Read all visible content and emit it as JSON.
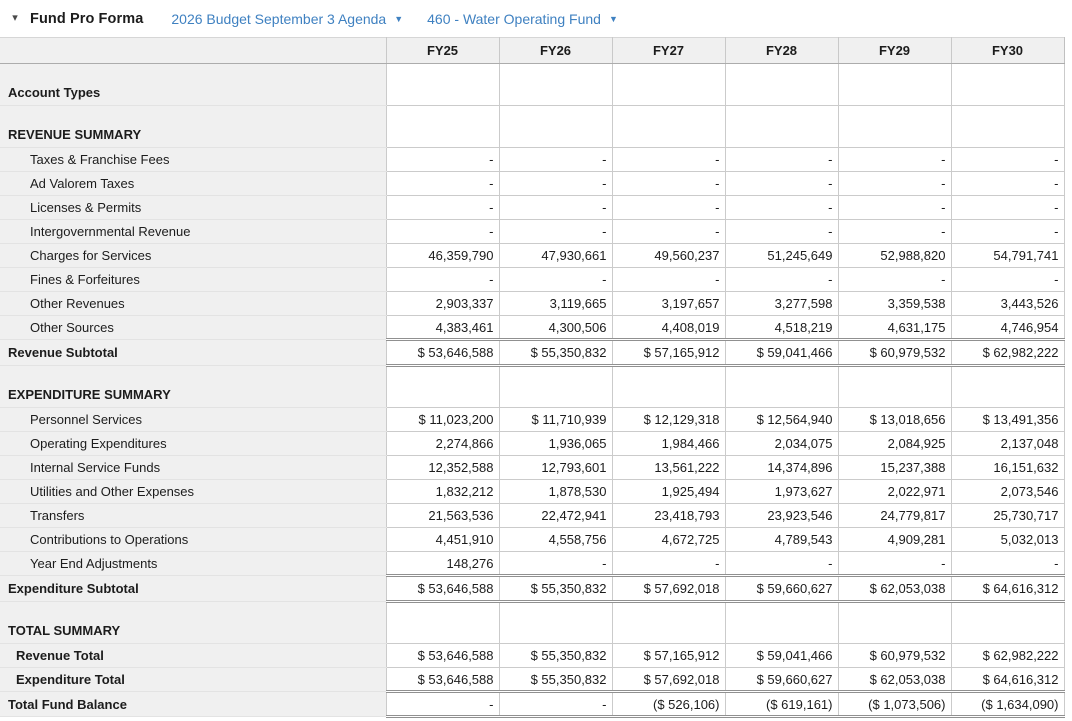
{
  "header": {
    "collapse_icon": "▾",
    "title": "Fund Pro Forma",
    "budget_dropdown": {
      "label": "2026 Budget September 3 Agenda",
      "caret": "▼"
    },
    "fund_dropdown": {
      "label": "460 - Water Operating Fund",
      "caret": "▼"
    }
  },
  "colors": {
    "link_blue": "#3f81c1",
    "header_bg": "#f0f0f0",
    "label_column_bg": "#f0f0f0",
    "cell_border": "#cbcbcb",
    "double_rule": "#909090",
    "text": "#1c1c1c"
  },
  "table": {
    "columns": [
      "FY25",
      "FY26",
      "FY27",
      "FY28",
      "FY29",
      "FY30"
    ],
    "rows": [
      {
        "type": "section",
        "label": "Account Types",
        "values": [
          "",
          "",
          "",
          "",
          "",
          ""
        ]
      },
      {
        "type": "section",
        "label": "REVENUE SUMMARY",
        "values": [
          "",
          "",
          "",
          "",
          "",
          ""
        ]
      },
      {
        "type": "detail",
        "label": "Taxes & Franchise Fees",
        "values": [
          "-",
          "-",
          "-",
          "-",
          "-",
          "-"
        ]
      },
      {
        "type": "detail",
        "label": "Ad Valorem Taxes",
        "values": [
          "-",
          "-",
          "-",
          "-",
          "-",
          "-"
        ]
      },
      {
        "type": "detail",
        "label": "Licenses & Permits",
        "values": [
          "-",
          "-",
          "-",
          "-",
          "-",
          "-"
        ]
      },
      {
        "type": "detail",
        "label": "Intergovernmental Revenue",
        "values": [
          "-",
          "-",
          "-",
          "-",
          "-",
          "-"
        ]
      },
      {
        "type": "detail",
        "label": "Charges for Services",
        "values": [
          "46,359,790",
          "47,930,661",
          "49,560,237",
          "51,245,649",
          "52,988,820",
          "54,791,741"
        ]
      },
      {
        "type": "detail",
        "label": "Fines & Forfeitures",
        "values": [
          "-",
          "-",
          "-",
          "-",
          "-",
          "-"
        ]
      },
      {
        "type": "detail",
        "label": "Other Revenues",
        "values": [
          "2,903,337",
          "3,119,665",
          "3,197,657",
          "3,277,598",
          "3,359,538",
          "3,443,526"
        ]
      },
      {
        "type": "detail",
        "label": "Other Sources",
        "values": [
          "4,383,461",
          "4,300,506",
          "4,408,019",
          "4,518,219",
          "4,631,175",
          "4,746,954"
        ]
      },
      {
        "type": "subtotal",
        "label": "Revenue Subtotal",
        "values": [
          "$ 53,646,588",
          "$ 55,350,832",
          "$ 57,165,912",
          "$ 59,041,466",
          "$ 60,979,532",
          "$ 62,982,222"
        ]
      },
      {
        "type": "section",
        "label": "EXPENDITURE SUMMARY",
        "values": [
          "",
          "",
          "",
          "",
          "",
          ""
        ]
      },
      {
        "type": "detail",
        "label": "Personnel Services",
        "values": [
          "$ 11,023,200",
          "$ 11,710,939",
          "$ 12,129,318",
          "$ 12,564,940",
          "$ 13,018,656",
          "$ 13,491,356"
        ]
      },
      {
        "type": "detail",
        "label": "Operating Expenditures",
        "values": [
          "2,274,866",
          "1,936,065",
          "1,984,466",
          "2,034,075",
          "2,084,925",
          "2,137,048"
        ]
      },
      {
        "type": "detail",
        "label": "Internal Service Funds",
        "values": [
          "12,352,588",
          "12,793,601",
          "13,561,222",
          "14,374,896",
          "15,237,388",
          "16,151,632"
        ]
      },
      {
        "type": "detail",
        "label": "Utilities and Other Expenses",
        "values": [
          "1,832,212",
          "1,878,530",
          "1,925,494",
          "1,973,627",
          "2,022,971",
          "2,073,546"
        ]
      },
      {
        "type": "detail",
        "label": "Transfers",
        "values": [
          "21,563,536",
          "22,472,941",
          "23,418,793",
          "23,923,546",
          "24,779,817",
          "25,730,717"
        ]
      },
      {
        "type": "detail",
        "label": "Contributions to Operations",
        "values": [
          "4,451,910",
          "4,558,756",
          "4,672,725",
          "4,789,543",
          "4,909,281",
          "5,032,013"
        ]
      },
      {
        "type": "detail",
        "label": "Year End Adjustments",
        "values": [
          "148,276",
          "-",
          "-",
          "-",
          "-",
          "-"
        ]
      },
      {
        "type": "subtotal",
        "label": "Expenditure Subtotal",
        "values": [
          "$ 53,646,588",
          "$ 55,350,832",
          "$ 57,692,018",
          "$ 59,660,627",
          "$ 62,053,038",
          "$ 64,616,312"
        ]
      },
      {
        "type": "section",
        "label": "TOTAL SUMMARY",
        "values": [
          "",
          "",
          "",
          "",
          "",
          ""
        ]
      },
      {
        "type": "total",
        "label": "Revenue Total",
        "values": [
          "$ 53,646,588",
          "$ 55,350,832",
          "$ 57,165,912",
          "$ 59,041,466",
          "$ 60,979,532",
          "$ 62,982,222"
        ]
      },
      {
        "type": "total",
        "label": "Expenditure Total",
        "values": [
          "$ 53,646,588",
          "$ 55,350,832",
          "$ 57,692,018",
          "$ 59,660,627",
          "$ 62,053,038",
          "$ 64,616,312"
        ]
      },
      {
        "type": "grand",
        "label": "Total Fund Balance",
        "values": [
          "-",
          "-",
          "($ 526,106)",
          "($ 619,161)",
          "($ 1,073,506)",
          "($ 1,634,090)"
        ]
      }
    ]
  }
}
